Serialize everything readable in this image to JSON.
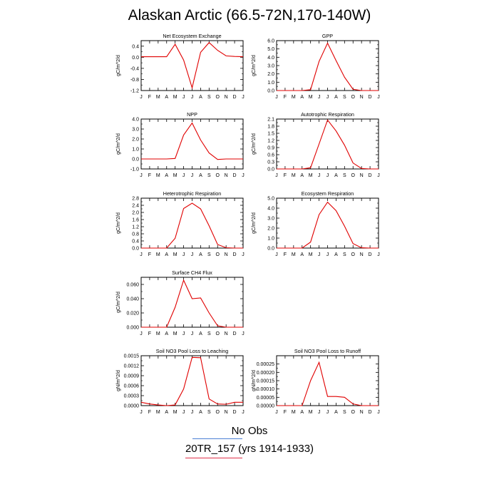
{
  "page": {
    "title": "Alaskan Arctic (66.5-72N,170-140W)",
    "legend": {
      "obs_label": "No Obs",
      "obs_color": "#4a7fd4",
      "model_label": "20TR_157 (yrs 1914-1933)",
      "model_color": "#e0304a",
      "series_color": "#e00000"
    }
  },
  "chart_data": [
    {
      "type": "line",
      "title": "Net Ecosystem Exchange",
      "ylabel": "gC/m^2/d",
      "categories": [
        "J",
        "F",
        "M",
        "A",
        "M",
        "J",
        "J",
        "A",
        "S",
        "O",
        "N",
        "D",
        "J"
      ],
      "ylim": [
        -1.2,
        0.6
      ],
      "yticks": [
        "0.4",
        "0.0",
        "-0.4",
        "-0.8",
        "-1.2"
      ],
      "ytick_values": [
        0.4,
        0.0,
        -0.4,
        -0.8,
        -1.2
      ],
      "series": [
        {
          "values": [
            0.02,
            0.02,
            0.02,
            0.02,
            0.47,
            -0.1,
            -1.1,
            0.18,
            0.53,
            0.25,
            0.05,
            0.03,
            0.02
          ]
        }
      ]
    },
    {
      "type": "line",
      "title": "GPP",
      "ylabel": "gC/m^2/d",
      "categories": [
        "J",
        "F",
        "M",
        "A",
        "M",
        "J",
        "J",
        "A",
        "S",
        "O",
        "N",
        "D",
        "J"
      ],
      "ylim": [
        0,
        6
      ],
      "yticks": [
        "6.0",
        "5.0",
        "4.0",
        "3.0",
        "2.0",
        "1.0",
        "0.0"
      ],
      "ytick_values": [
        6,
        5,
        4,
        3,
        2,
        1,
        0
      ],
      "series": [
        {
          "values": [
            0,
            0,
            0,
            0,
            0.1,
            3.5,
            5.7,
            3.6,
            1.6,
            0.15,
            0,
            0,
            0
          ]
        }
      ]
    },
    {
      "type": "line",
      "title": "NPP",
      "ylabel": "gC/m^2/d",
      "categories": [
        "J",
        "F",
        "M",
        "A",
        "M",
        "J",
        "J",
        "A",
        "S",
        "O",
        "N",
        "D",
        "J"
      ],
      "ylim": [
        -1,
        4
      ],
      "yticks": [
        "4.0",
        "3.0",
        "2.0",
        "1.0",
        "0.0",
        "-1.0"
      ],
      "ytick_values": [
        4,
        3,
        2,
        1,
        0,
        -1
      ],
      "series": [
        {
          "values": [
            0,
            0,
            0,
            0,
            0.05,
            2.4,
            3.6,
            1.9,
            0.6,
            -0.05,
            0,
            0,
            0
          ]
        }
      ]
    },
    {
      "type": "line",
      "title": "Autotrophic Respiration",
      "ylabel": "gC/m^2/d",
      "categories": [
        "J",
        "F",
        "M",
        "A",
        "M",
        "J",
        "J",
        "A",
        "S",
        "O",
        "N",
        "D",
        "J"
      ],
      "ylim": [
        0,
        2.1
      ],
      "yticks": [
        "2.1",
        "1.8",
        "1.5",
        "1.2",
        "0.9",
        "0.6",
        "0.3",
        "0.0"
      ],
      "ytick_values": [
        2.1,
        1.8,
        1.5,
        1.2,
        0.9,
        0.6,
        0.3,
        0.0
      ],
      "series": [
        {
          "values": [
            0,
            0,
            0,
            0,
            0.05,
            1.05,
            2.06,
            1.6,
            1.0,
            0.25,
            0.02,
            0,
            0
          ]
        }
      ]
    },
    {
      "type": "line",
      "title": "Heterotrophic Respiration",
      "ylabel": "gC/m^2/d",
      "categories": [
        "J",
        "F",
        "M",
        "A",
        "M",
        "J",
        "J",
        "A",
        "S",
        "O",
        "N",
        "D",
        "J"
      ],
      "ylim": [
        0,
        2.8
      ],
      "yticks": [
        "2.8",
        "2.4",
        "2.0",
        "1.6",
        "1.2",
        "0.8",
        "0.4",
        "0.0"
      ],
      "ytick_values": [
        2.8,
        2.4,
        2.0,
        1.6,
        1.2,
        0.8,
        0.4,
        0.0
      ],
      "series": [
        {
          "values": [
            0,
            0,
            0,
            0,
            0.55,
            2.22,
            2.52,
            2.2,
            1.25,
            0.2,
            0.02,
            0,
            0
          ]
        }
      ]
    },
    {
      "type": "line",
      "title": "Ecosystem Respiration",
      "ylabel": "gC/m^2/d",
      "categories": [
        "J",
        "F",
        "M",
        "A",
        "M",
        "J",
        "J",
        "A",
        "S",
        "O",
        "N",
        "D",
        "J"
      ],
      "ylim": [
        0,
        5
      ],
      "yticks": [
        "5.0",
        "4.0",
        "3.0",
        "2.0",
        "1.0",
        "0.0"
      ],
      "ytick_values": [
        5,
        4,
        3,
        2,
        1,
        0
      ],
      "series": [
        {
          "values": [
            0,
            0,
            0,
            0,
            0.6,
            3.35,
            4.6,
            3.75,
            2.2,
            0.45,
            0.03,
            0,
            0
          ]
        }
      ]
    },
    {
      "type": "line",
      "title": "Surface CH4 Flux",
      "ylabel": "gC/m^2/d",
      "categories": [
        "J",
        "F",
        "M",
        "A",
        "M",
        "J",
        "J",
        "A",
        "S",
        "O",
        "N",
        "D",
        "J"
      ],
      "ylim": [
        0,
        0.07
      ],
      "yticks": [
        "0.060",
        "0.040",
        "0.020",
        "0.000"
      ],
      "ytick_values": [
        0.06,
        0.04,
        0.02,
        0.0
      ],
      "series": [
        {
          "values": [
            0,
            0,
            0,
            0,
            0.028,
            0.066,
            0.04,
            0.041,
            0.02,
            0.002,
            0,
            0,
            0
          ]
        }
      ]
    },
    {
      "type": "line",
      "title": "Soil NO3 Pool Loss to Leaching",
      "ylabel": "gN/m^2/d",
      "categories": [
        "J",
        "F",
        "M",
        "A",
        "M",
        "J",
        "J",
        "A",
        "S",
        "O",
        "N",
        "D",
        "J"
      ],
      "ylim": [
        0,
        0.0015
      ],
      "yticks": [
        "0.0015",
        "0.0012",
        "0.0009",
        "0.0006",
        "0.0003",
        "0.0000"
      ],
      "ytick_values": [
        0.0015,
        0.0012,
        0.0009,
        0.0006,
        0.0003,
        0.0
      ],
      "series": [
        {
          "values": [
            0.0001,
            5e-05,
            2e-05,
            0,
            2e-05,
            0.0005,
            0.00145,
            0.00144,
            0.0002,
            5e-05,
            4e-05,
            0.0001,
            0.0001
          ]
        }
      ]
    },
    {
      "type": "line",
      "title": "Soil NO3 Pool Loss to Runoff",
      "ylabel": "gN/m^2/d",
      "categories": [
        "J",
        "F",
        "M",
        "A",
        "M",
        "J",
        "J",
        "A",
        "S",
        "O",
        "N",
        "D",
        "J"
      ],
      "ylim": [
        0,
        0.0003
      ],
      "yticks": [
        "0.00025",
        "0.00020",
        "0.00015",
        "0.00010",
        "0.00005",
        "0.00000"
      ],
      "ytick_values": [
        0.00025,
        0.0002,
        0.00015,
        0.0001,
        5e-05,
        0.0
      ],
      "series": [
        {
          "values": [
            0,
            0,
            0,
            0,
            0.00015,
            0.00026,
            5.5e-05,
            5.5e-05,
            5e-05,
            1e-05,
            0,
            0,
            0
          ]
        }
      ]
    }
  ]
}
